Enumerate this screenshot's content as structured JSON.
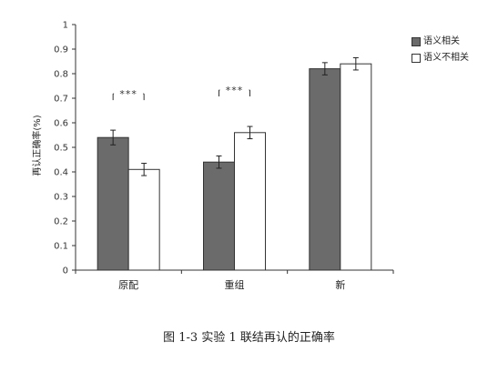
{
  "chart_data": {
    "type": "bar",
    "categories": [
      "原配",
      "重组",
      "新"
    ],
    "series": [
      {
        "name": "语义相关",
        "values": [
          0.54,
          0.44,
          0.82
        ],
        "errors": [
          0.03,
          0.025,
          0.025
        ],
        "color": "#6b6b6b"
      },
      {
        "name": "语义不相关",
        "values": [
          0.41,
          0.56,
          0.84
        ],
        "errors": [
          0.025,
          0.025,
          0.025
        ],
        "color": "#ffffff"
      }
    ],
    "ylabel": "再认正确率(%)",
    "ylim": [
      0,
      1
    ],
    "yticks": [
      "0",
      "0.1",
      "0.2",
      "0.3",
      "0.4",
      "0.5",
      "0.6",
      "0.7",
      "0.8",
      "0.9",
      "1"
    ],
    "significance": [
      {
        "category": "原配",
        "label": "***"
      },
      {
        "category": "重组",
        "label": "***"
      }
    ],
    "legend_position": "top-right",
    "grid": false
  },
  "caption": "图 1-3  实验 1 联结再认的正确率"
}
